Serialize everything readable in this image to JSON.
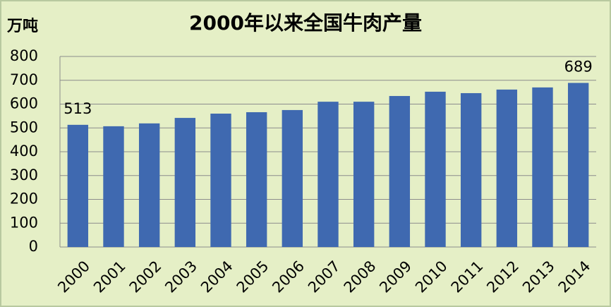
{
  "chart_data": {
    "type": "bar",
    "title": "2000年以来全国牛肉产量",
    "y_label": "万吨",
    "categories": [
      "2000",
      "2001",
      "2002",
      "2003",
      "2004",
      "2005",
      "2006",
      "2007",
      "2008",
      "2009",
      "2010",
      "2011",
      "2012",
      "2013",
      "2014"
    ],
    "values": [
      513,
      507,
      519,
      542,
      560,
      566,
      575,
      610,
      610,
      634,
      652,
      646,
      661,
      670,
      689
    ],
    "labeled": [
      0,
      14
    ],
    "color": "#3f69b0",
    "ylim": [
      0,
      800
    ],
    "yticks": [
      0,
      100,
      200,
      300,
      400,
      500,
      600,
      700,
      800
    ],
    "grid": true
  }
}
